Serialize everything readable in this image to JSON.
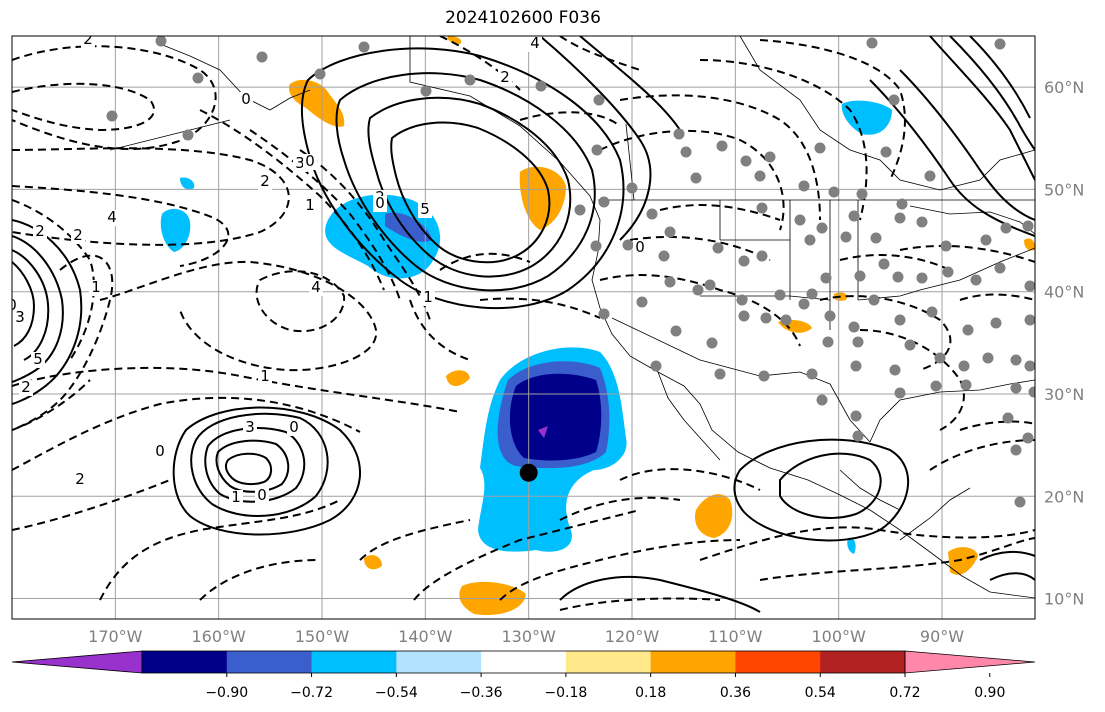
{
  "title": "2024102600 F036",
  "map": {
    "lon_range": [
      -180,
      -81
    ],
    "lat_range": [
      8,
      65
    ],
    "grid": true,
    "lat_ticks": [
      {
        "value": 60,
        "label": "60°N"
      },
      {
        "value": 50,
        "label": "50°N"
      },
      {
        "value": 40,
        "label": "40°N"
      },
      {
        "value": 30,
        "label": "30°N"
      },
      {
        "value": 20,
        "label": "20°N"
      },
      {
        "value": 10,
        "label": "10°N"
      }
    ],
    "lon_ticks": [
      {
        "value": -170,
        "label": "170°W"
      },
      {
        "value": -160,
        "label": "160°W"
      },
      {
        "value": -150,
        "label": "150°W"
      },
      {
        "value": -140,
        "label": "140°W"
      },
      {
        "value": -130,
        "label": "130°W"
      },
      {
        "value": -120,
        "label": "120°W"
      },
      {
        "value": -110,
        "label": "110°W"
      },
      {
        "value": -100,
        "label": "100°W"
      },
      {
        "value": -90,
        "label": "90°W"
      }
    ],
    "contour_labels": [
      "2",
      "4",
      "0",
      "2",
      "3",
      "1",
      "2",
      "4",
      "5",
      "2",
      "0",
      "4",
      "0",
      "2",
      "1",
      "2",
      "3",
      "5",
      "2",
      "0",
      "1",
      "0",
      "1",
      "0",
      "2",
      "3",
      "0",
      "1",
      "0"
    ],
    "marker": {
      "lon": -130,
      "lat": 22.3
    },
    "colors": {
      "dashed_contour": "#000000",
      "grid": "#a0a0a0",
      "station_dot": "#808080",
      "marker": "#000000"
    }
  },
  "colorbar": {
    "colors": [
      "#9932cc",
      "#00008b",
      "#3a5fcd",
      "#00bfff",
      "#b2e2ff",
      "#ffffff",
      "#ffe98a",
      "#ffa500",
      "#ff4500",
      "#b22222",
      "#ff88aa"
    ],
    "tick_labels": [
      "−0.90",
      "−0.72",
      "−0.54",
      "−0.36",
      "−0.18",
      "0.18",
      "0.36",
      "0.54",
      "0.72",
      "0.90"
    ]
  }
}
